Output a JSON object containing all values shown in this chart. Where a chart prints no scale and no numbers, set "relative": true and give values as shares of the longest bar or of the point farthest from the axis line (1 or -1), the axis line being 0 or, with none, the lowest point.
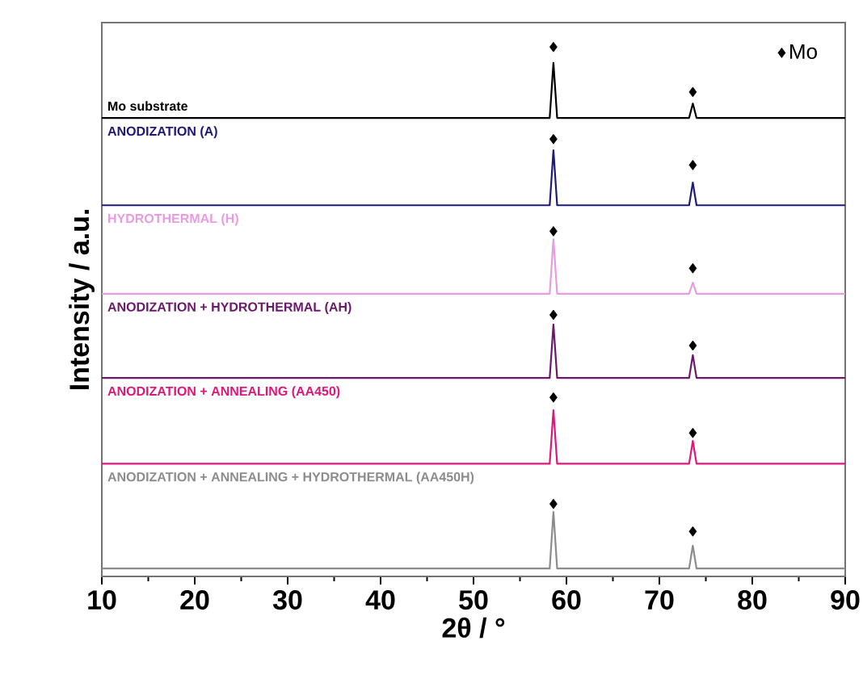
{
  "chart_data": {
    "type": "line",
    "xlabel": "2θ / °",
    "ylabel": "Intensity / a.u.",
    "relative": true,
    "xlim": [
      10,
      90
    ],
    "xticks": [
      10,
      20,
      30,
      40,
      50,
      60,
      70,
      80,
      90
    ],
    "legend": "top right",
    "series": [
      {
        "name": "Mo substrate",
        "color": "#000000",
        "x": [
          10,
          58.2,
          58.6,
          59.0,
          73.2,
          73.6,
          74.0,
          90
        ],
        "values": [
          0.866,
          0.866,
          0.97,
          0.866,
          0.866,
          0.893,
          0.866,
          0.866
        ]
      },
      {
        "name": "ANODIZATION (A)",
        "color": "#1f1a7a",
        "x": [
          10,
          58.2,
          58.6,
          59.0,
          73.2,
          73.6,
          74.0,
          90
        ],
        "values": [
          0.701,
          0.701,
          0.805,
          0.701,
          0.701,
          0.744,
          0.701,
          0.701
        ]
      },
      {
        "name": "HYDROTHERMAL (H)",
        "color": "#e79be0",
        "x": [
          10,
          58.2,
          58.6,
          59.0,
          73.2,
          73.6,
          74.0,
          90
        ],
        "values": [
          0.534,
          0.534,
          0.637,
          0.534,
          0.534,
          0.555,
          0.534,
          0.534
        ]
      },
      {
        "name": "ANODIZATION + HYDROTHERMAL (AH)",
        "color": "#6b1a6b",
        "x": [
          10,
          58.2,
          58.6,
          59.0,
          73.2,
          73.6,
          74.0,
          90
        ],
        "values": [
          0.375,
          0.375,
          0.476,
          0.375,
          0.375,
          0.418,
          0.375,
          0.375
        ]
      },
      {
        "name": "ANODIZATION + ANNEALING (AA450)",
        "color": "#e0177a",
        "x": [
          10,
          58.2,
          58.6,
          59.0,
          73.2,
          73.6,
          74.0,
          90
        ],
        "values": [
          0.213,
          0.213,
          0.314,
          0.213,
          0.213,
          0.256,
          0.213,
          0.213
        ]
      },
      {
        "name": "ANODIZATION + ANNEALING + HYDROTHERMAL (AA450H)",
        "color": "#8c8c8c",
        "x": [
          10,
          58.2,
          58.6,
          59.0,
          73.2,
          73.6,
          74.0,
          90
        ],
        "values": [
          0.015,
          0.015,
          0.122,
          0.015,
          0.015,
          0.058,
          0.015,
          0.015
        ]
      },
      {
        "name": "Mo",
        "type": "scatter",
        "marker": "diamond",
        "color": "#000000",
        "x": [
          58.6,
          73.6,
          58.6,
          73.6,
          58.6,
          73.6,
          58.6,
          73.6,
          58.6,
          73.6,
          58.6,
          73.6
        ],
        "values": [
          1.0,
          0.915,
          0.826,
          0.777,
          0.652,
          0.582,
          0.494,
          0.436,
          0.338,
          0.271,
          0.137,
          0.085
        ]
      }
    ]
  }
}
